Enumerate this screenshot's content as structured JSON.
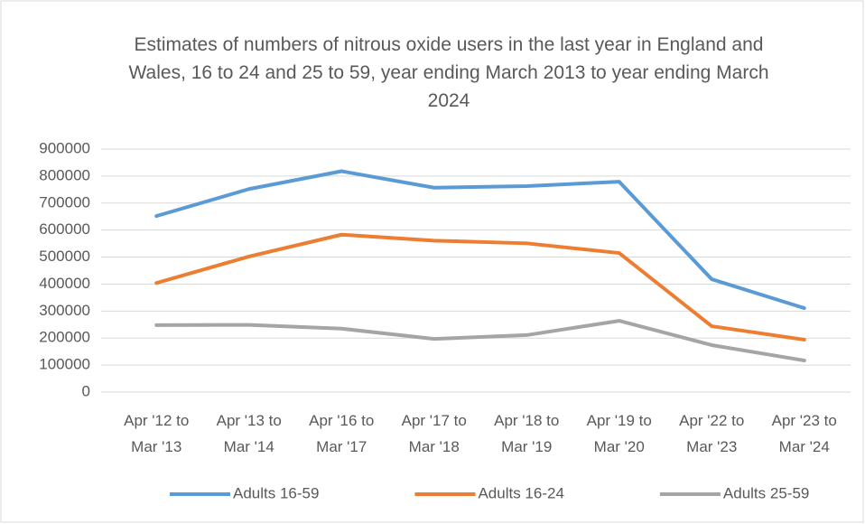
{
  "chart_data": {
    "type": "line",
    "title": "Estimates of numbers of nitrous oxide users in the last year in England and Wales, 16 to 24 and 25 to 59, year ending March 2013 to year ending March 2024",
    "categories": [
      "Apr '12 to Mar '13",
      "Apr '13 to Mar '14",
      "Apr '16 to Mar '17",
      "Apr '17 to Mar '18",
      "Apr '18 to Mar '19",
      "Apr '19 to Mar '20",
      "Apr '22 to Mar '23",
      "Apr '23 to Mar '24"
    ],
    "series": [
      {
        "name": "Adults 16-59",
        "color": "#5b9bd5",
        "values": [
          652000,
          752000,
          818000,
          757000,
          763000,
          779000,
          418000,
          311000
        ]
      },
      {
        "name": "Adults 16-24",
        "color": "#ed7d31",
        "values": [
          404000,
          502000,
          583000,
          561000,
          551000,
          515000,
          244000,
          194000
        ]
      },
      {
        "name": "Adults 25-59",
        "color": "#a5a5a5",
        "values": [
          248000,
          249000,
          235000,
          197000,
          211000,
          264000,
          174000,
          117000
        ]
      }
    ],
    "ylim": [
      0,
      900000
    ],
    "yticks": [
      0,
      100000,
      200000,
      300000,
      400000,
      500000,
      600000,
      700000,
      800000,
      900000
    ],
    "grid": true,
    "legend": "bottom"
  }
}
